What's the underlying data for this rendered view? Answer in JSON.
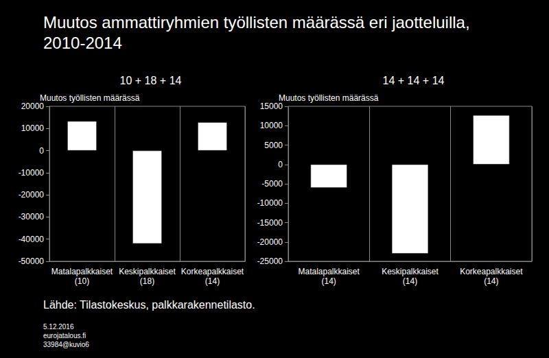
{
  "title": "Muutos ammattiryhmien työllisten määrässä eri jaotteluilla,\n2010-2014",
  "source": "Lähde: Tilastokeskus, palkkarakennetilasto.",
  "footer": [
    "5.12.2016",
    "eurojatalous.fi",
    "33984@kuvio6"
  ],
  "chart_data": [
    {
      "type": "bar",
      "title": "10 + 18 + 14",
      "y_label": "Muutos työllisten määrässä",
      "categories": [
        "Matalapalkkaiset\n(10)",
        "Keskipalkkaiset\n(18)",
        "Korkeapalkkaiset\n(14)"
      ],
      "values": [
        13300,
        -42000,
        12800
      ],
      "color": "#ffffff",
      "ylim": [
        -50000,
        20000
      ],
      "yticks": [
        -50000,
        -40000,
        -30000,
        -20000,
        -10000,
        0,
        10000,
        20000
      ],
      "grid": true
    },
    {
      "type": "bar",
      "title": "14 + 14 + 14",
      "y_label": "Muutos työllisten määrässä",
      "categories": [
        "Matalapalkkaiset\n(14)",
        "Keskipalkkaiset\n(14)",
        "Korkeapalkkaiset\n(14)"
      ],
      "values": [
        -6000,
        -23000,
        12700
      ],
      "color": "#ffffff",
      "ylim": [
        -25000,
        15000
      ],
      "yticks": [
        -25000,
        -20000,
        -15000,
        -10000,
        -5000,
        0,
        5000,
        10000,
        15000
      ],
      "grid": true
    }
  ]
}
